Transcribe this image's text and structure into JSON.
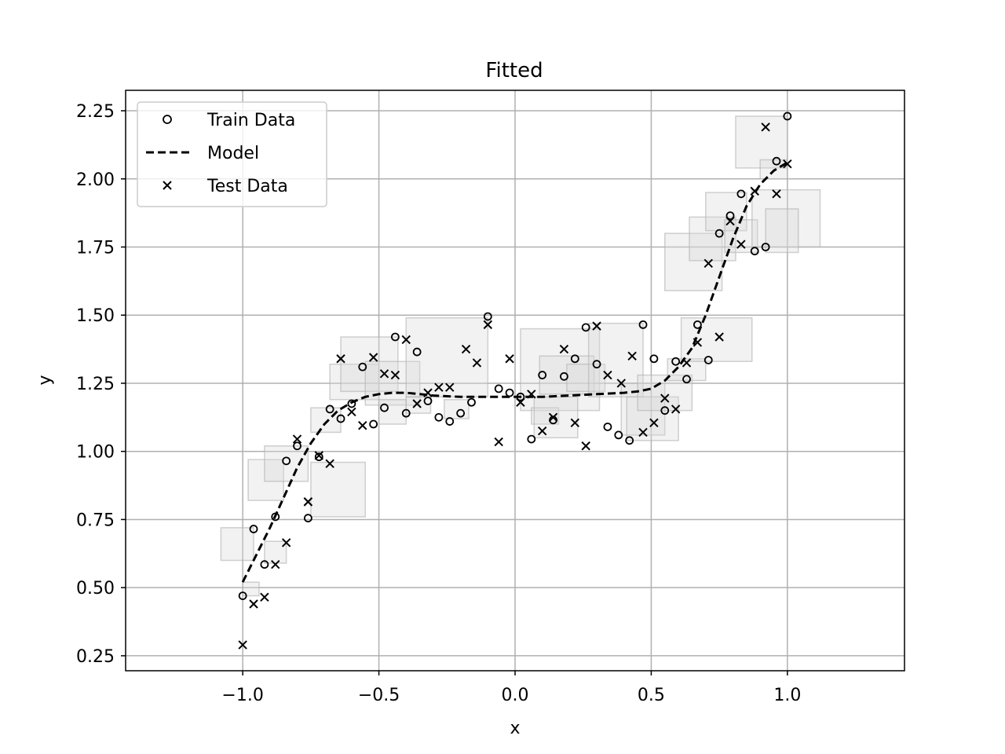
{
  "chart_data": {
    "type": "scatter",
    "title": "Fitted",
    "xlabel": "x",
    "ylabel": "y",
    "xlim": [
      -1.43,
      1.43
    ],
    "ylim": [
      0.195,
      2.325
    ],
    "x_ticks": [
      -1.0,
      -0.5,
      0.0,
      0.5,
      1.0
    ],
    "x_tick_labels": [
      "−1.0",
      "−0.5",
      "0.0",
      "0.5",
      "1.0"
    ],
    "y_ticks": [
      0.25,
      0.5,
      0.75,
      1.0,
      1.25,
      1.5,
      1.75,
      2.0,
      2.25
    ],
    "y_tick_labels": [
      "0.25",
      "0.50",
      "0.75",
      "1.00",
      "1.25",
      "1.50",
      "1.75",
      "2.00",
      "2.25"
    ],
    "grid": true,
    "legend_position": "top-left",
    "legend": [
      "Train Data",
      "Model",
      "Test Data"
    ],
    "colors": {
      "marker": "#000000",
      "model": "#000000",
      "grid": "#b0b0b0",
      "box_fill": "#d9d9d9",
      "box_edge": "#b3b3b3"
    },
    "series": [
      {
        "name": "Train Data",
        "marker": "circle",
        "x": [
          -1.0,
          -0.96,
          -0.92,
          -0.88,
          -0.84,
          -0.8,
          -0.76,
          -0.72,
          -0.68,
          -0.64,
          -0.6,
          -0.56,
          -0.52,
          -0.48,
          -0.44,
          -0.4,
          -0.36,
          -0.32,
          -0.28,
          -0.24,
          -0.2,
          -0.16,
          -0.1,
          -0.06,
          -0.02,
          0.02,
          0.06,
          0.1,
          0.14,
          0.18,
          0.22,
          0.26,
          0.3,
          0.34,
          0.38,
          0.42,
          0.47,
          0.51,
          0.55,
          0.59,
          0.63,
          0.67,
          0.71,
          0.75,
          0.79,
          0.83,
          0.88,
          0.92,
          0.96,
          1.0
        ],
        "y": [
          0.47,
          0.715,
          0.585,
          0.76,
          0.965,
          1.02,
          0.755,
          0.98,
          1.155,
          1.12,
          1.175,
          1.31,
          1.1,
          1.16,
          1.42,
          1.14,
          1.365,
          1.185,
          1.125,
          1.11,
          1.14,
          1.18,
          1.495,
          1.23,
          1.215,
          1.2,
          1.045,
          1.28,
          1.115,
          1.275,
          1.34,
          1.455,
          1.32,
          1.09,
          1.06,
          1.04,
          1.465,
          1.34,
          1.15,
          1.33,
          1.265,
          1.465,
          1.335,
          1.8,
          1.865,
          1.945,
          1.735,
          1.75,
          2.065,
          2.23
        ]
      },
      {
        "name": "Test Data",
        "marker": "x",
        "x": [
          -1.0,
          -0.96,
          -0.92,
          -0.88,
          -0.84,
          -0.8,
          -0.76,
          -0.76,
          -0.72,
          -0.68,
          -0.64,
          -0.6,
          -0.56,
          -0.52,
          -0.48,
          -0.44,
          -0.4,
          -0.36,
          -0.32,
          -0.28,
          -0.24,
          -0.18,
          -0.14,
          -0.1,
          -0.06,
          -0.02,
          0.02,
          0.06,
          0.1,
          0.14,
          0.18,
          0.22,
          0.26,
          0.3,
          0.34,
          0.39,
          0.43,
          0.47,
          0.51,
          0.55,
          0.59,
          0.63,
          0.67,
          0.71,
          0.75,
          0.79,
          0.83,
          0.88,
          0.92,
          0.96,
          1.0
        ],
        "y": [
          0.29,
          0.44,
          0.465,
          0.585,
          0.665,
          1.045,
          0.815,
          0.815,
          0.985,
          0.955,
          1.34,
          1.145,
          1.095,
          1.345,
          1.285,
          1.28,
          1.41,
          1.175,
          1.215,
          1.235,
          1.235,
          1.375,
          1.325,
          1.465,
          1.035,
          1.34,
          1.18,
          1.21,
          1.075,
          1.125,
          1.375,
          1.105,
          1.02,
          1.46,
          1.28,
          1.25,
          1.35,
          1.07,
          1.105,
          1.195,
          1.155,
          1.325,
          1.4,
          1.69,
          1.42,
          1.845,
          1.76,
          1.955,
          2.19,
          1.945,
          2.055
        ]
      },
      {
        "name": "Model",
        "line_style": "dashed",
        "x": [
          -1.0,
          -0.95,
          -0.9,
          -0.85,
          -0.8,
          -0.75,
          -0.7,
          -0.65,
          -0.6,
          -0.55,
          -0.5,
          -0.45,
          -0.4,
          -0.35,
          -0.3,
          -0.2,
          -0.1,
          0.0,
          0.1,
          0.2,
          0.3,
          0.4,
          0.45,
          0.5,
          0.55,
          0.6,
          0.65,
          0.7,
          0.75,
          0.8,
          0.85,
          0.9,
          0.95,
          1.0
        ],
        "y": [
          0.52,
          0.62,
          0.72,
          0.83,
          0.94,
          1.03,
          1.1,
          1.15,
          1.18,
          1.2,
          1.21,
          1.215,
          1.215,
          1.21,
          1.205,
          1.2,
          1.2,
          1.2,
          1.2,
          1.205,
          1.21,
          1.215,
          1.22,
          1.23,
          1.26,
          1.31,
          1.38,
          1.5,
          1.64,
          1.78,
          1.9,
          1.98,
          2.03,
          2.06
        ]
      }
    ],
    "uncertainty_boxes": [
      {
        "x0": -1.08,
        "x1": -0.96,
        "y0": 0.6,
        "y1": 0.72
      },
      {
        "x0": -1.0,
        "x1": -0.94,
        "y0": 0.47,
        "y1": 0.52
      },
      {
        "x0": -0.98,
        "x1": -0.85,
        "y0": 0.82,
        "y1": 0.97
      },
      {
        "x0": -0.92,
        "x1": -0.84,
        "y0": 0.59,
        "y1": 0.67
      },
      {
        "x0": -0.92,
        "x1": -0.76,
        "y0": 0.89,
        "y1": 1.02
      },
      {
        "x0": -0.75,
        "x1": -0.55,
        "y0": 0.76,
        "y1": 0.96
      },
      {
        "x0": -0.75,
        "x1": -0.64,
        "y0": 1.07,
        "y1": 1.16
      },
      {
        "x0": -0.68,
        "x1": -0.5,
        "y0": 1.19,
        "y1": 1.32
      },
      {
        "x0": -0.64,
        "x1": -0.43,
        "y0": 1.22,
        "y1": 1.42
      },
      {
        "x0": -0.55,
        "x1": -0.35,
        "y0": 1.17,
        "y1": 1.33
      },
      {
        "x0": -0.5,
        "x1": -0.4,
        "y0": 1.1,
        "y1": 1.19
      },
      {
        "x0": -0.4,
        "x1": -0.31,
        "y0": 1.14,
        "y1": 1.2
      },
      {
        "x0": -0.4,
        "x1": -0.1,
        "y0": 1.2,
        "y1": 1.49
      },
      {
        "x0": -0.26,
        "x1": -0.17,
        "y0": 1.12,
        "y1": 1.19
      },
      {
        "x0": 0.02,
        "x1": 0.31,
        "y0": 1.15,
        "y1": 1.45
      },
      {
        "x0": 0.06,
        "x1": 0.16,
        "y0": 1.1,
        "y1": 1.16
      },
      {
        "x0": 0.07,
        "x1": 0.23,
        "y0": 1.05,
        "y1": 1.2
      },
      {
        "x0": 0.09,
        "x1": 0.29,
        "y0": 1.21,
        "y1": 1.35
      },
      {
        "x0": 0.19,
        "x1": 0.33,
        "y0": 1.22,
        "y1": 1.32
      },
      {
        "x0": 0.27,
        "x1": 0.47,
        "y0": 1.2,
        "y1": 1.47
      },
      {
        "x0": 0.39,
        "x1": 0.55,
        "y0": 1.06,
        "y1": 1.25
      },
      {
        "x0": 0.41,
        "x1": 0.6,
        "y0": 1.04,
        "y1": 1.2
      },
      {
        "x0": 0.45,
        "x1": 0.65,
        "y0": 1.15,
        "y1": 1.28
      },
      {
        "x0": 0.56,
        "x1": 0.7,
        "y0": 1.26,
        "y1": 1.34
      },
      {
        "x0": 0.61,
        "x1": 0.87,
        "y0": 1.33,
        "y1": 1.49
      },
      {
        "x0": 0.55,
        "x1": 0.76,
        "y0": 1.59,
        "y1": 1.8
      },
      {
        "x0": 0.64,
        "x1": 0.81,
        "y0": 1.7,
        "y1": 1.86
      },
      {
        "x0": 0.7,
        "x1": 0.85,
        "y0": 1.81,
        "y1": 1.95
      },
      {
        "x0": 0.77,
        "x1": 0.89,
        "y0": 1.73,
        "y1": 1.85
      },
      {
        "x0": 0.87,
        "x1": 1.12,
        "y0": 1.75,
        "y1": 1.96
      },
      {
        "x0": 0.92,
        "x1": 1.04,
        "y0": 1.73,
        "y1": 1.89
      },
      {
        "x0": 0.81,
        "x1": 1.0,
        "y0": 2.04,
        "y1": 2.23
      },
      {
        "x0": 0.9,
        "x1": 1.0,
        "y0": 2.0,
        "y1": 2.07
      }
    ]
  }
}
